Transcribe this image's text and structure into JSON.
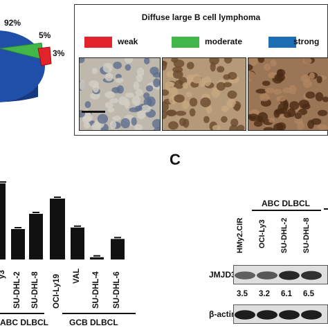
{
  "pie": {
    "slices": [
      {
        "label": "92%",
        "value": 92,
        "color": "#1f4fa8"
      },
      {
        "label": "5%",
        "value": 5,
        "color": "#43b649"
      },
      {
        "label": "3%",
        "value": 3,
        "color": "#e2232a"
      }
    ]
  },
  "histo_panel": {
    "title": "Diffuse large B cell lymphoma",
    "legend": [
      {
        "label": "weak",
        "color": "#e2232a"
      },
      {
        "label": "moderate",
        "color": "#43b649"
      },
      {
        "label": "strong",
        "color": "#1d6db3"
      }
    ]
  },
  "panel_c_letter": "C",
  "chart_data": {
    "type": "bar",
    "categories": [
      "",
      "SU-DHL-2",
      "SU-DHL-8",
      "OCI-Ly19",
      "VAL",
      "SU-DHL-4",
      "SU-DHL-6"
    ],
    "visible_first_category": "y3",
    "values": [
      1.0,
      0.4,
      0.6,
      0.8,
      0.42,
      0.03,
      0.27
    ],
    "groups": [
      {
        "label": "ABC DLBCL"
      },
      {
        "label": "GCB DLBCL"
      }
    ]
  },
  "blot": {
    "group_label": "ABC DLBCL",
    "lanes": [
      "HMy2.CIR",
      "OCI-Ly3",
      "SU-DHL-2",
      "SU-DHL-8"
    ],
    "rows": [
      {
        "label": "JMJD3",
        "intensities": [
          0.55,
          0.6,
          0.85,
          0.8
        ]
      },
      {
        "label": "β-actin",
        "intensities": [
          0.9,
          0.9,
          0.9,
          0.9
        ]
      }
    ],
    "values": [
      "3.5",
      "3.2",
      "6.1",
      "6.5"
    ]
  }
}
